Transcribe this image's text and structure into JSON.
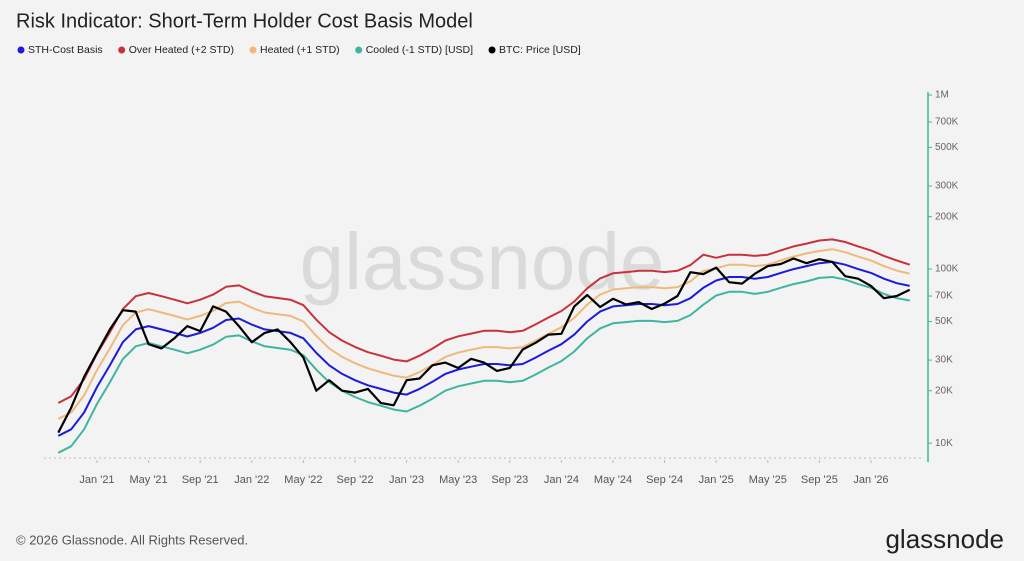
{
  "chart_data": {
    "type": "line",
    "title": "Risk Indicator: Short-Term Holder Cost Basis Model",
    "watermark": "glassnode",
    "footer": "© 2026 Glassnode. All Rights Reserved.",
    "logo": "glassnode",
    "log_scale": true,
    "grid": false,
    "legend": "top-left",
    "x": [
      "2020-10",
      "2020-11",
      "2020-12",
      "2021-01",
      "2021-02",
      "2021-03",
      "2021-04",
      "2021-05",
      "2021-06",
      "2021-07",
      "2021-08",
      "2021-09",
      "2021-10",
      "2021-11",
      "2021-12",
      "2022-01",
      "2022-02",
      "2022-03",
      "2022-04",
      "2022-05",
      "2022-06",
      "2022-07",
      "2022-08",
      "2022-09",
      "2022-10",
      "2022-11",
      "2022-12",
      "2023-01",
      "2023-02",
      "2023-03",
      "2023-04",
      "2023-05",
      "2023-06",
      "2023-07",
      "2023-08",
      "2023-09",
      "2023-10",
      "2023-11",
      "2023-12",
      "2024-01",
      "2024-02",
      "2024-03",
      "2024-04",
      "2024-05",
      "2024-06",
      "2024-07",
      "2024-08",
      "2024-09",
      "2024-10",
      "2024-11",
      "2024-12",
      "2025-01",
      "2025-02",
      "2025-03",
      "2025-04",
      "2025-05",
      "2025-06",
      "2025-07",
      "2025-08",
      "2025-09",
      "2025-10",
      "2025-11",
      "2025-12",
      "2026-01",
      "2026-02",
      "2026-03",
      "2026-04"
    ],
    "xticks": [
      {
        "value": "2021-01",
        "label": "Jan '21"
      },
      {
        "value": "2021-05",
        "label": "May '21"
      },
      {
        "value": "2021-09",
        "label": "Sep '21"
      },
      {
        "value": "2022-01",
        "label": "Jan '22"
      },
      {
        "value": "2022-05",
        "label": "May '22"
      },
      {
        "value": "2022-09",
        "label": "Sep '22"
      },
      {
        "value": "2023-01",
        "label": "Jan '23"
      },
      {
        "value": "2023-05",
        "label": "May '23"
      },
      {
        "value": "2023-09",
        "label": "Sep '23"
      },
      {
        "value": "2024-01",
        "label": "Jan '24"
      },
      {
        "value": "2024-05",
        "label": "May '24"
      },
      {
        "value": "2024-09",
        "label": "Sep '24"
      },
      {
        "value": "2025-01",
        "label": "Jan '25"
      },
      {
        "value": "2025-05",
        "label": "May '25"
      },
      {
        "value": "2025-09",
        "label": "Sep '25"
      },
      {
        "value": "2026-01",
        "label": "Jan '26"
      }
    ],
    "ylim": [
      8000,
      1000000
    ],
    "yticks": [
      {
        "value": 10000,
        "label": "10K"
      },
      {
        "value": 20000,
        "label": "20K"
      },
      {
        "value": 30000,
        "label": "30K"
      },
      {
        "value": 50000,
        "label": "50K"
      },
      {
        "value": 70000,
        "label": "70K"
      },
      {
        "value": 100000,
        "label": "100K"
      },
      {
        "value": 200000,
        "label": "200K"
      },
      {
        "value": 300000,
        "label": "300K"
      },
      {
        "value": 500000,
        "label": "500K"
      },
      {
        "value": 700000,
        "label": "700K"
      },
      {
        "value": 1000000,
        "label": "1M"
      }
    ],
    "series": [
      {
        "name": "STH-Cost Basis",
        "color": "#1b1bdb",
        "values": [
          11000,
          12000,
          15000,
          21000,
          28000,
          38000,
          45000,
          47000,
          45000,
          43000,
          41000,
          43000,
          46000,
          51000,
          52000,
          48000,
          45000,
          44000,
          43000,
          40000,
          33000,
          28000,
          25000,
          23000,
          21500,
          20500,
          19500,
          19000,
          20500,
          22500,
          25000,
          26500,
          27500,
          28500,
          28500,
          28000,
          28500,
          31000,
          34000,
          37000,
          42000,
          50000,
          57000,
          61000,
          62000,
          63000,
          63000,
          62000,
          63000,
          68000,
          78000,
          86000,
          90000,
          90000,
          88000,
          90000,
          95000,
          100000,
          104000,
          108000,
          110000,
          106000,
          100000,
          95000,
          88000,
          83000,
          80000
        ]
      },
      {
        "name": "Over Heated (+2 STD)",
        "color": "#c8323c",
        "values": [
          17000,
          18600,
          23300,
          32600,
          43400,
          58900,
          69800,
          72900,
          69800,
          66700,
          63600,
          66700,
          71300,
          79100,
          80600,
          74400,
          69800,
          68200,
          66700,
          62000,
          51200,
          43400,
          38800,
          35700,
          33300,
          31800,
          30200,
          29500,
          31800,
          34900,
          38800,
          41100,
          42600,
          44200,
          44200,
          43400,
          44200,
          48100,
          52700,
          57400,
          65100,
          77500,
          88400,
          94600,
          96100,
          97700,
          97700,
          96100,
          97700,
          105400,
          120900,
          116000,
          121000,
          121000,
          119000,
          121000,
          128000,
          135000,
          140000,
          146000,
          148000,
          143000,
          135000,
          128000,
          119000,
          112000,
          106000
        ]
      },
      {
        "name": "Heated (+1 STD)",
        "color": "#f0b97c",
        "values": [
          13800,
          15000,
          18800,
          26300,
          35000,
          47500,
          56300,
          58800,
          56300,
          53800,
          51300,
          53800,
          57500,
          63800,
          65000,
          60000,
          56300,
          55000,
          53800,
          50000,
          41300,
          35000,
          31300,
          28800,
          26900,
          25600,
          24400,
          23800,
          25600,
          28100,
          31300,
          33100,
          34400,
          35600,
          35600,
          35000,
          35600,
          38800,
          42500,
          46300,
          52500,
          62500,
          71300,
          76300,
          77500,
          78800,
          78800,
          77500,
          78800,
          85000,
          97500,
          101000,
          106000,
          106000,
          104000,
          106000,
          112000,
          118000,
          123000,
          127000,
          130000,
          125000,
          118000,
          112000,
          104000,
          98000,
          94000
        ]
      },
      {
        "name": "Cooled (-1 STD) [USD]",
        "color": "#3fb5a0",
        "values": [
          8800,
          9600,
          12000,
          16800,
          22400,
          30400,
          36000,
          37600,
          36000,
          34400,
          32800,
          34400,
          36800,
          40800,
          41600,
          38400,
          36000,
          35200,
          34400,
          32000,
          26400,
          22400,
          20000,
          18400,
          17200,
          16400,
          15600,
          15200,
          16400,
          18000,
          20000,
          21200,
          22000,
          22800,
          22800,
          22400,
          22800,
          24800,
          27200,
          29600,
          33600,
          40000,
          45600,
          48800,
          49600,
          50400,
          50400,
          49600,
          50400,
          54400,
          62400,
          70500,
          74000,
          74000,
          72000,
          74000,
          78000,
          82000,
          85000,
          89000,
          90000,
          87000,
          82000,
          78000,
          72000,
          68000,
          66000
        ]
      },
      {
        "name": "BTC: Price [USD]",
        "color": "#000000",
        "values": [
          11500,
          16000,
          24000,
          33000,
          45000,
          58000,
          57000,
          37000,
          35000,
          40000,
          47000,
          44000,
          61000,
          57000,
          47000,
          38000,
          43000,
          45000,
          38000,
          31000,
          20000,
          23000,
          20000,
          19500,
          20500,
          17000,
          16500,
          23000,
          23500,
          28000,
          29000,
          27000,
          30500,
          29000,
          26000,
          27000,
          34500,
          37700,
          42000,
          42500,
          61000,
          71000,
          60500,
          67500,
          62700,
          64600,
          59000,
          63300,
          70000,
          96000,
          93500,
          102000,
          84000,
          82500,
          94000,
          104000,
          107000,
          115000,
          108000,
          114000,
          110000,
          91000,
          88000,
          80000,
          68000,
          70000,
          76000
        ]
      }
    ]
  }
}
